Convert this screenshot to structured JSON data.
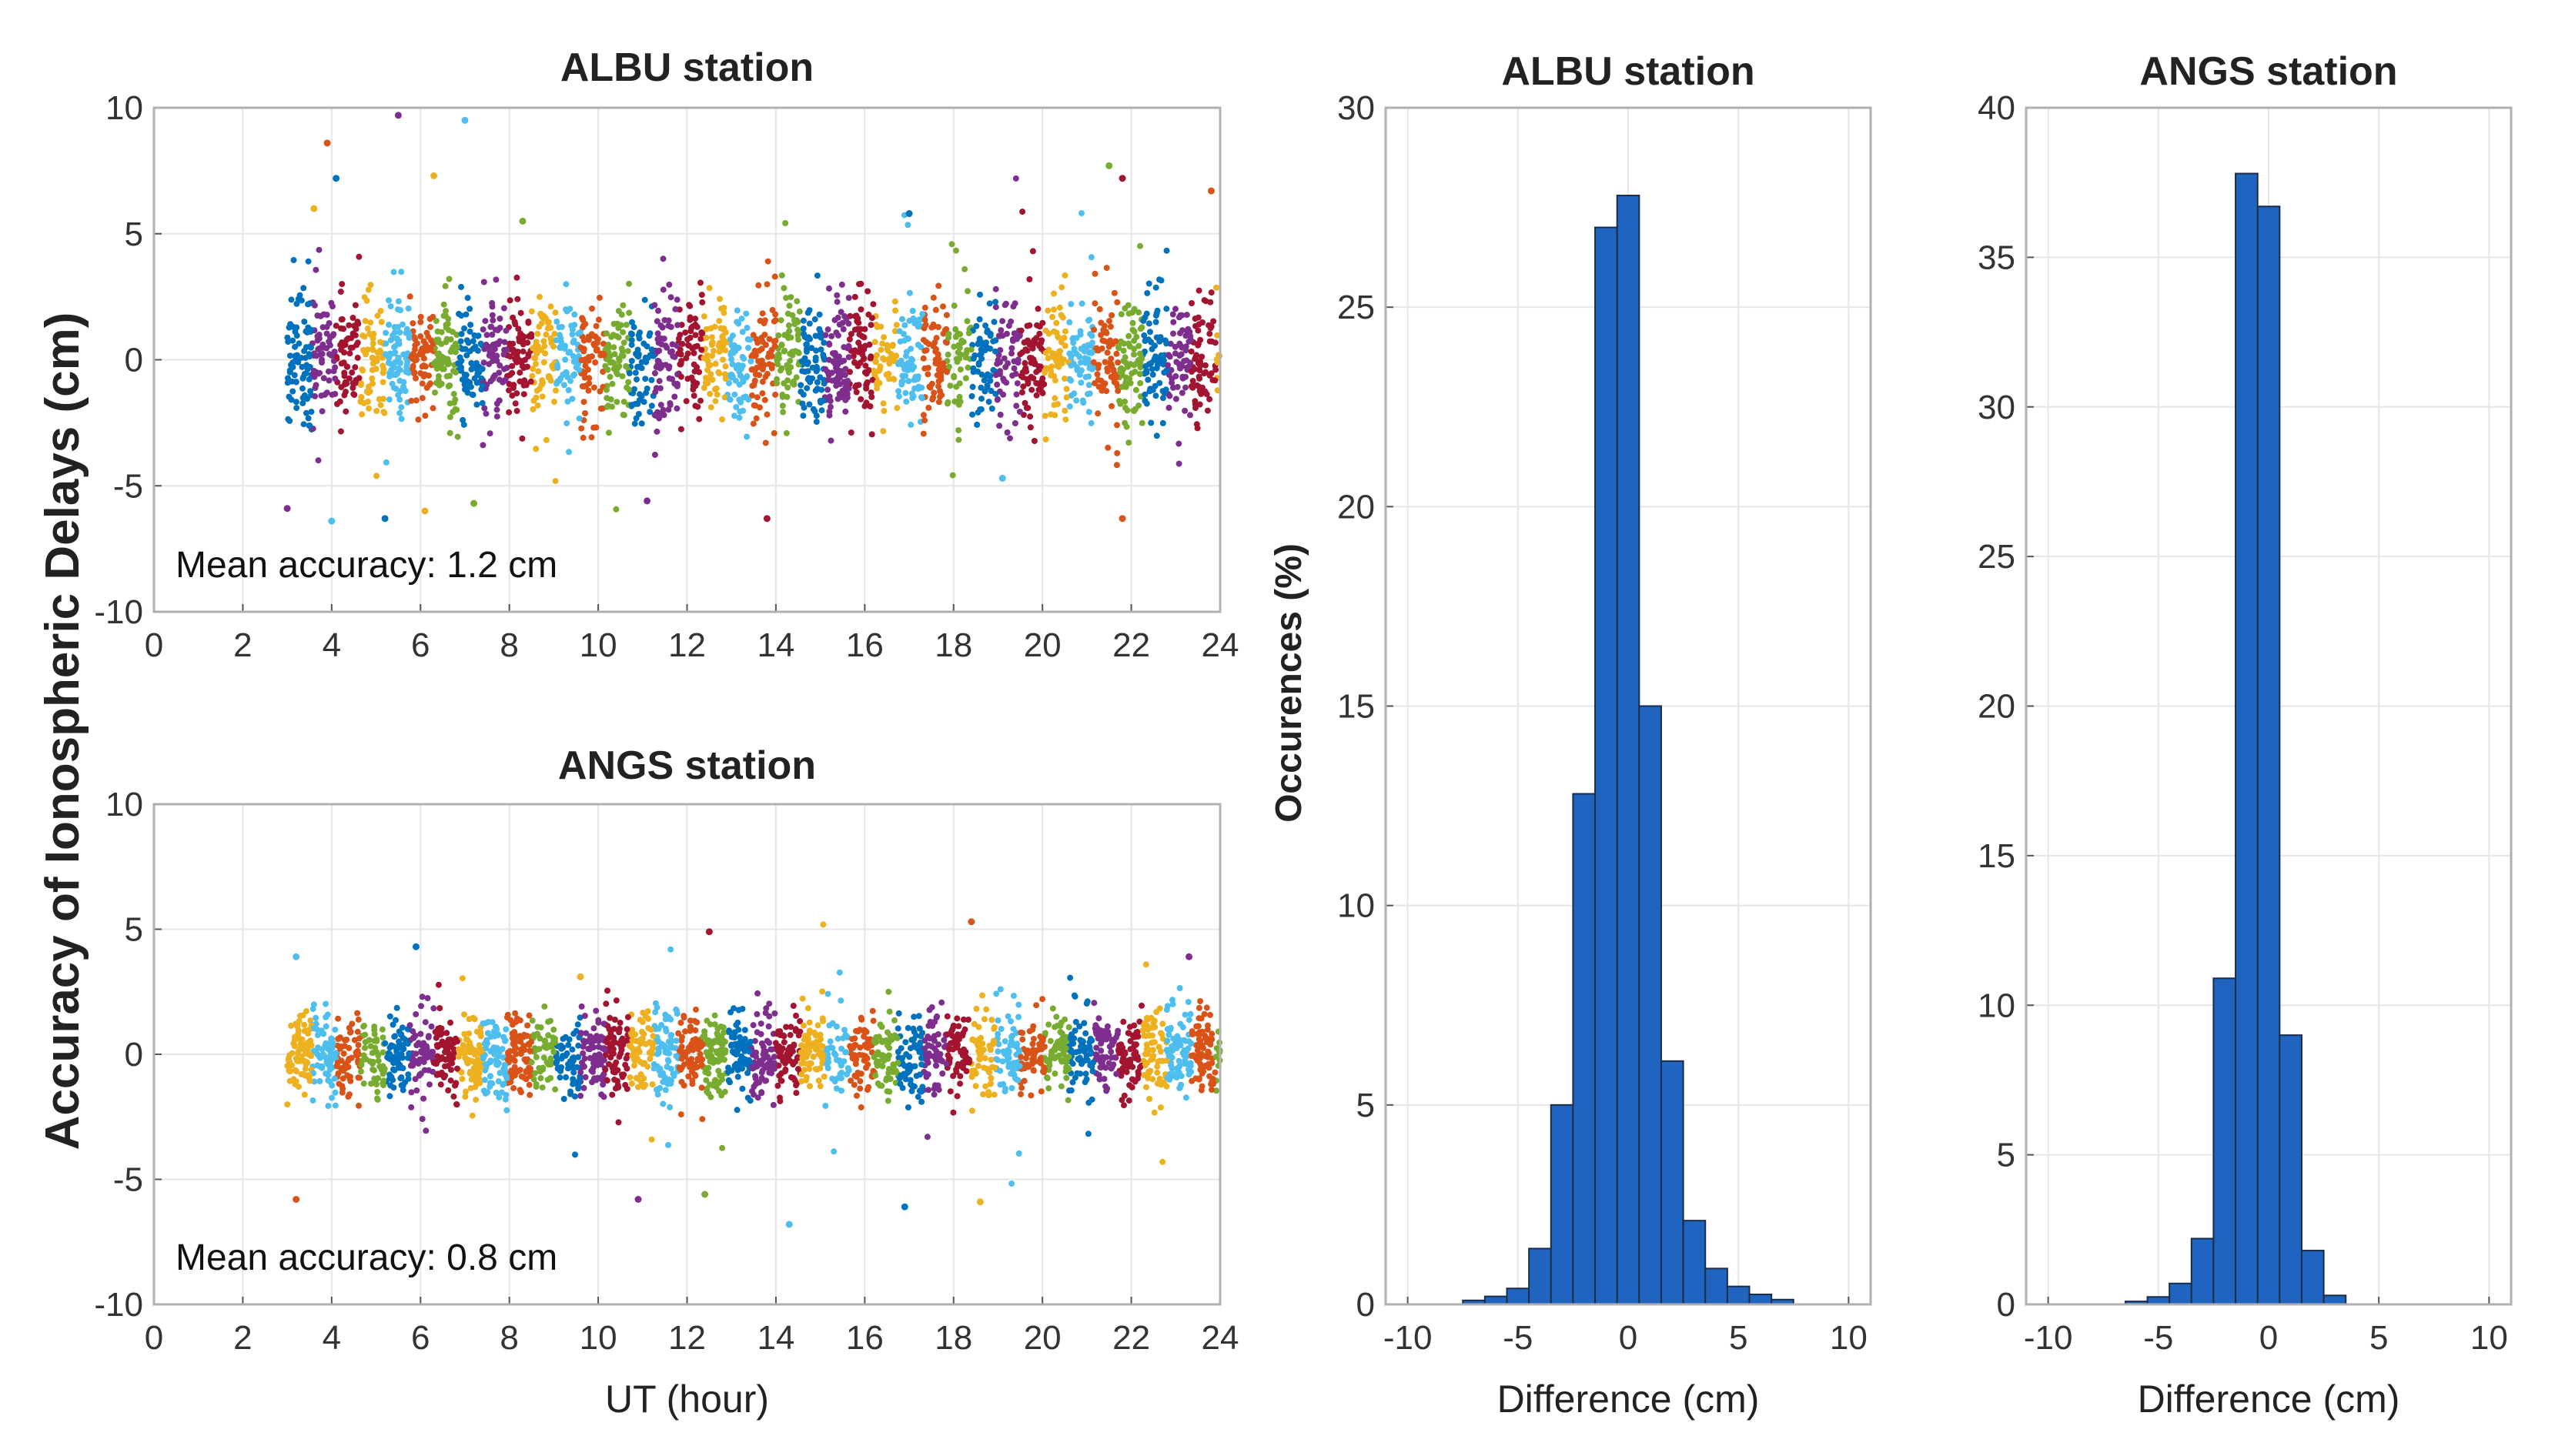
{
  "figure": {
    "shared_ylabel": "Accuracy of Ionospheric Delays (cm)",
    "colors": {
      "bar_fill": "#1f65c0",
      "series": [
        "#0072bd",
        "#d95319",
        "#edb120",
        "#7e2f8e",
        "#77ac30",
        "#4dbeee",
        "#a2142f"
      ]
    }
  },
  "chart_data": [
    {
      "type": "scatter",
      "title": "ALBU station",
      "xlabel": "",
      "ylabel": "Accuracy of Ionospheric Delays (cm)",
      "xlim": [
        0,
        24
      ],
      "ylim": [
        -10,
        10
      ],
      "xticks": [
        0,
        2,
        4,
        6,
        8,
        10,
        12,
        14,
        16,
        18,
        20,
        22,
        24
      ],
      "yticks": [
        10,
        5,
        0,
        -5,
        -10
      ],
      "grid": true,
      "annotation": "Mean accuracy: 1.2 cm",
      "data_range_x": [
        3,
        24
      ],
      "typical_spread": 1.2,
      "outliers": [
        {
          "x": 3.9,
          "y": 8.6
        },
        {
          "x": 5.5,
          "y": 9.7
        },
        {
          "x": 7.0,
          "y": 9.5
        },
        {
          "x": 4.1,
          "y": 7.2
        },
        {
          "x": 6.3,
          "y": 7.3
        },
        {
          "x": 21.5,
          "y": 7.7
        },
        {
          "x": 21.8,
          "y": 7.2
        },
        {
          "x": 23.8,
          "y": 6.7
        },
        {
          "x": 3.0,
          "y": -5.9
        },
        {
          "x": 4.0,
          "y": -6.4
        },
        {
          "x": 5.2,
          "y": -6.3
        },
        {
          "x": 6.1,
          "y": -6.0
        },
        {
          "x": 7.2,
          "y": -5.7
        },
        {
          "x": 13.8,
          "y": -6.3
        },
        {
          "x": 21.8,
          "y": -6.3
        },
        {
          "x": 11.1,
          "y": -5.6
        },
        {
          "x": 19.1,
          "y": -4.7
        },
        {
          "x": 17.0,
          "y": 5.8
        },
        {
          "x": 3.6,
          "y": 6.0
        },
        {
          "x": 8.3,
          "y": 5.5
        }
      ]
    },
    {
      "type": "scatter",
      "title": "ANGS station",
      "xlabel": "UT (hour)",
      "ylabel": "Accuracy of Ionospheric Delays (cm)",
      "xlim": [
        0,
        24
      ],
      "ylim": [
        -10,
        10
      ],
      "xticks": [
        0,
        2,
        4,
        6,
        8,
        10,
        12,
        14,
        16,
        18,
        20,
        22,
        24
      ],
      "yticks": [
        10,
        5,
        0,
        -5,
        -10
      ],
      "grid": true,
      "annotation": "Mean accuracy: 0.8 cm",
      "data_range_x": [
        3,
        24
      ],
      "typical_spread": 0.8,
      "outliers": [
        {
          "x": 3.2,
          "y": -5.8
        },
        {
          "x": 10.9,
          "y": -5.8
        },
        {
          "x": 14.3,
          "y": -6.8
        },
        {
          "x": 16.9,
          "y": -6.1
        },
        {
          "x": 18.6,
          "y": -5.9
        },
        {
          "x": 12.4,
          "y": -5.6
        },
        {
          "x": 12.5,
          "y": 4.9
        },
        {
          "x": 18.4,
          "y": 5.3
        },
        {
          "x": 23.3,
          "y": 3.9
        },
        {
          "x": 3.2,
          "y": 3.9
        },
        {
          "x": 5.9,
          "y": 4.3
        },
        {
          "x": 9.6,
          "y": 3.1
        }
      ]
    },
    {
      "type": "bar",
      "title": "ALBU station",
      "xlabel": "Difference (cm)",
      "ylabel": "Occurences (%)",
      "xlim": [
        -11,
        11
      ],
      "ylim": [
        0,
        30
      ],
      "xticks": [
        -10,
        -5,
        0,
        5,
        10
      ],
      "yticks": [
        30,
        25,
        20,
        15,
        10,
        5,
        0
      ],
      "grid": true,
      "bin_width": 1,
      "bin_centers": [
        -7,
        -6,
        -5,
        -4,
        -3,
        -2,
        -1,
        0,
        1,
        2,
        3,
        4,
        5,
        6,
        7
      ],
      "values": [
        0.1,
        0.2,
        0.4,
        1.4,
        5.0,
        12.8,
        27.0,
        27.8,
        15.0,
        6.1,
        2.1,
        0.9,
        0.45,
        0.25,
        0.12
      ]
    },
    {
      "type": "bar",
      "title": "ANGS station",
      "xlabel": "Difference (cm)",
      "ylabel": "",
      "xlim": [
        -11,
        11
      ],
      "ylim": [
        0,
        40
      ],
      "xticks": [
        -10,
        -5,
        0,
        5,
        10
      ],
      "yticks": [
        40,
        35,
        30,
        25,
        20,
        15,
        10,
        5,
        0
      ],
      "grid": true,
      "bin_width": 1,
      "bin_centers": [
        -6,
        -5,
        -4,
        -3,
        -2,
        -1,
        0,
        1,
        2,
        3
      ],
      "values": [
        0.1,
        0.25,
        0.7,
        2.2,
        10.9,
        37.8,
        36.7,
        9.0,
        1.8,
        0.3
      ]
    }
  ]
}
